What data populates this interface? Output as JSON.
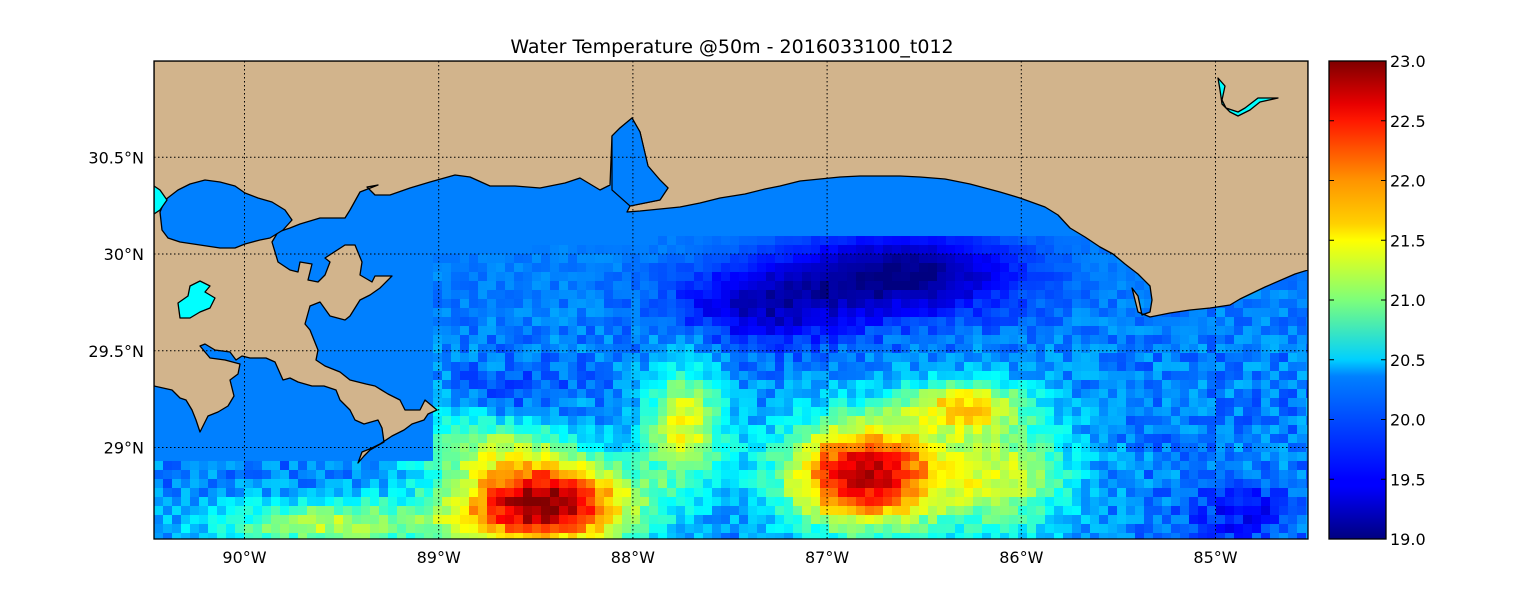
{
  "map": {
    "title": "Water Temperature @50m - 2016033100_t012",
    "lon_ticks": [
      "90°W",
      "89°W",
      "88°W",
      "87°W",
      "86°W",
      "85°W"
    ],
    "lat_ticks": [
      "30.5°N",
      "30°N",
      "29.5°N",
      "29°N"
    ],
    "lon_values": [
      -90,
      -89,
      -88,
      -87,
      -86,
      -85
    ],
    "lat_values": [
      30.5,
      30.0,
      29.5,
      29.0
    ],
    "extent": {
      "lon_min": -90.5,
      "lon_max": -84.5,
      "lat_min": 28.5,
      "lat_max": 31.0
    },
    "land_color": "#d2b48c",
    "inland_water_color": "#00ffff",
    "ocean_base_color": "#0080ff"
  },
  "colorbar": {
    "min": 19.0,
    "max": 23.0,
    "tick_labels": [
      "23.0",
      "22.5",
      "22.0",
      "21.5",
      "21.0",
      "20.5",
      "20.0",
      "19.5",
      "19.0"
    ],
    "colormap": "jet"
  }
}
